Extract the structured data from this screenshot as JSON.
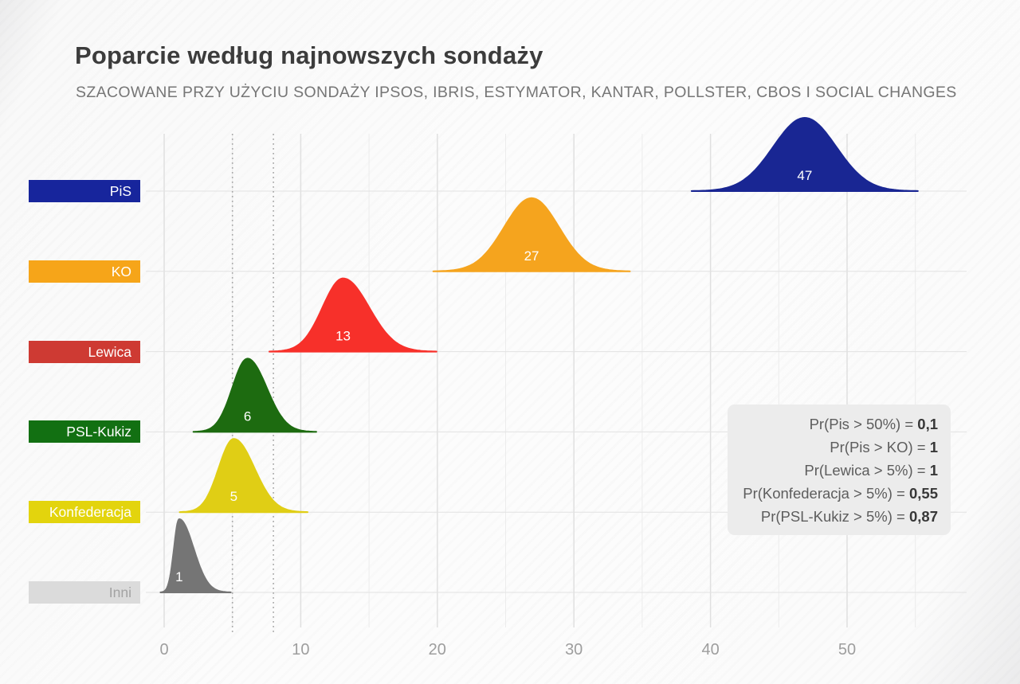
{
  "header": {
    "title": "Poparcie według najnowszych sondaży",
    "subtitle": "SZACOWANE PRZY UŻYCIU SONDAŻY IPSOS, IBRIS, ESTYMATOR, KANTAR, POLLSTER, CBOS I SOCIAL CHANGES"
  },
  "chart_data": {
    "type": "area",
    "subtype": "ridgeline-density",
    "title": "Poparcie według najnowszych sondaży",
    "xlabel": "",
    "ylabel": "",
    "xlim": [
      0,
      55
    ],
    "x_ticks": [
      0,
      10,
      20,
      30,
      40,
      50
    ],
    "x_gridline_step": 5,
    "grid": "on",
    "threshold_lines": [
      5,
      8
    ],
    "series": [
      {
        "party": "PiS",
        "support_pct": 47,
        "label": "47",
        "mean": 46.9,
        "sd_left": 2.3,
        "sd_right": 2.3,
        "color": "#192693",
        "chip_color": "#17259C",
        "chip_text_color": "#ffffff",
        "value_text_color": "#ffffff"
      },
      {
        "party": "KO",
        "support_pct": 27,
        "label": "27",
        "mean": 26.9,
        "sd_left": 2.0,
        "sd_right": 2.0,
        "color": "#F5A41E",
        "chip_color": "#F6A519",
        "chip_text_color": "#ffffff",
        "value_text_color": "#ffffff"
      },
      {
        "party": "Lewica",
        "support_pct": 13,
        "label": "13",
        "mean": 13.1,
        "sd_left": 1.5,
        "sd_right": 1.9,
        "color": "#F7302A",
        "chip_color": "#CE3A33",
        "chip_text_color": "#ffffff",
        "value_text_color": "#ffffff"
      },
      {
        "party": "PSL-Kukiz",
        "support_pct": 6,
        "label": "6",
        "mean": 6.1,
        "sd_left": 1.1,
        "sd_right": 1.4,
        "color": "#1D6B10",
        "chip_color": "#127012",
        "chip_text_color": "#ffffff",
        "value_text_color": "#ffffff"
      },
      {
        "party": "Konfederacja",
        "support_pct": 5,
        "label": "5",
        "mean": 5.1,
        "sd_left": 1.1,
        "sd_right": 1.5,
        "color": "#E0CE15",
        "chip_color": "#E3D40D",
        "chip_text_color": "#ffffff",
        "value_text_color": "#ffffff"
      },
      {
        "party": "Inni",
        "support_pct": 1,
        "label": "1",
        "mean": 1.1,
        "sd_left": 0.38,
        "sd_right": 1.05,
        "color": "#757575",
        "chip_color": "#DBDBDB",
        "chip_text_color": "#A3A3A3",
        "value_text_color": "#ffffff"
      }
    ]
  },
  "prob_box": {
    "lines": [
      {
        "label": "Pr(Pis > 50%) = ",
        "value": "0,1"
      },
      {
        "label": "Pr(Pis > KO) = ",
        "value": "1"
      },
      {
        "label": "Pr(Lewica > 5%) = ",
        "value": "1"
      },
      {
        "label": "Pr(Konfederacja > 5%) = ",
        "value": "0,55"
      },
      {
        "label": "Pr(PSL-Kukiz > 5%) = ",
        "value": "0,87"
      }
    ]
  },
  "colors": {
    "grid_major": "#e0e0e0",
    "grid_minor": "#ececec",
    "grid_row": "#e2e2e2",
    "threshold_dotted": "#a6a6a6",
    "tick_label": "#9e9e9e",
    "title": "#3c3c3c",
    "subtitle": "#767676"
  }
}
